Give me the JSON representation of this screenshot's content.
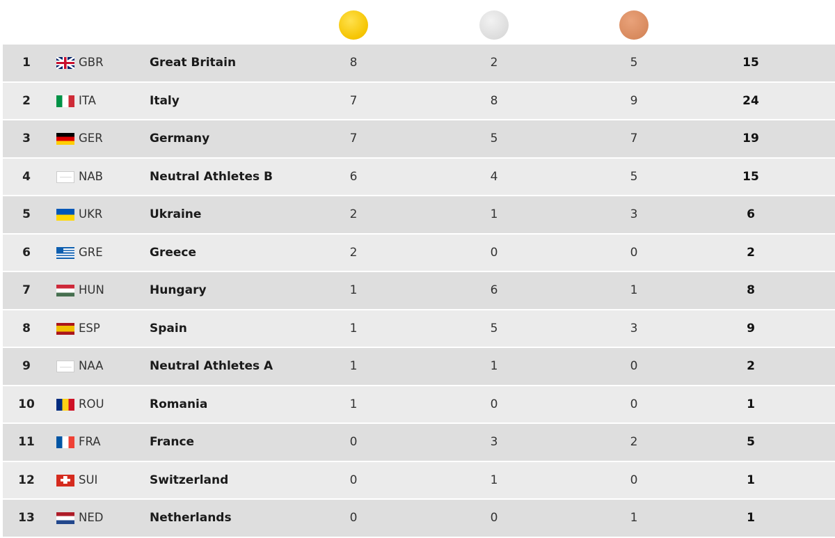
{
  "table": {
    "rows": [
      [
        1,
        "GBR",
        "Great Britain",
        8,
        2,
        5,
        15
      ],
      [
        2,
        "ITA",
        "Italy",
        7,
        8,
        9,
        24
      ],
      [
        3,
        "GER",
        "Germany",
        7,
        5,
        7,
        19
      ],
      [
        4,
        "NAB",
        "Neutral Athletes B",
        6,
        4,
        5,
        15
      ],
      [
        5,
        "UKR",
        "Ukraine",
        2,
        1,
        3,
        6
      ],
      [
        6,
        "GRE",
        "Greece",
        2,
        0,
        0,
        2
      ],
      [
        7,
        "HUN",
        "Hungary",
        1,
        6,
        1,
        8
      ],
      [
        8,
        "ESP",
        "Spain",
        1,
        5,
        3,
        9
      ],
      [
        9,
        "NAA",
        "Neutral Athletes A",
        1,
        1,
        0,
        2
      ],
      [
        10,
        "ROU",
        "Romania",
        1,
        0,
        0,
        1
      ],
      [
        11,
        "FRA",
        "France",
        0,
        3,
        2,
        5
      ],
      [
        12,
        "SUI",
        "Switzerland",
        0,
        1,
        0,
        1
      ],
      [
        13,
        "NED",
        "Netherlands",
        0,
        0,
        1,
        1
      ]
    ]
  }
}
